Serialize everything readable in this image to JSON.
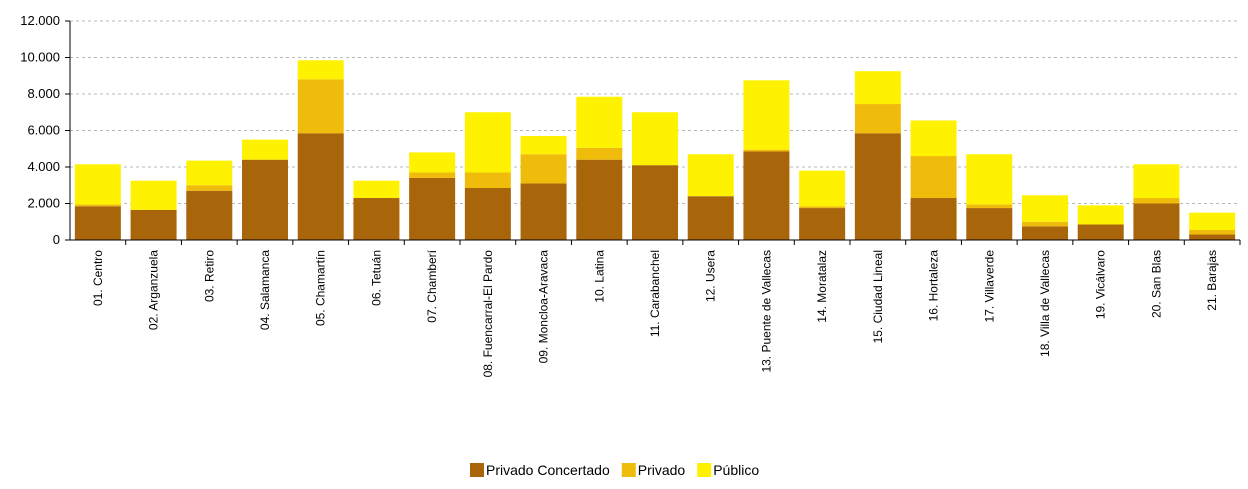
{
  "chart_data": {
    "type": "bar",
    "stacked": true,
    "title": "",
    "xlabel": "",
    "ylabel": "",
    "ylim": [
      0,
      12000
    ],
    "yticks": [
      "0",
      "2.000",
      "4.000",
      "6.000",
      "8.000",
      "10.000",
      "12.000"
    ],
    "ytick_values": [
      0,
      2000,
      4000,
      6000,
      8000,
      10000,
      12000
    ],
    "grid": "horizontal dashed",
    "legend_position": "bottom",
    "categories": [
      "01. Centro",
      "02. Arganzuela",
      "03. Retiro",
      "04. Salamanca",
      "05. Chamartín",
      "06. Tetuán",
      "07. Chamberí",
      "08. Fuencarral-El Pardo",
      "09. Moncloa-Aravaca",
      "10. Latina",
      "11. Carabanchel",
      "12. Usera",
      "13. Puente de Vallecas",
      "14. Moratalaz",
      "15. Ciudad Lineal",
      "16. Hortaleza",
      "17. Villaverde",
      "18. Villa de Vallecas",
      "19. Vicálvaro",
      "20. San Blas",
      "21. Barajas"
    ],
    "series": [
      {
        "name": "Privado Concertado",
        "color": "#A8650A",
        "values": [
          1850,
          1650,
          2700,
          4400,
          5850,
          2300,
          3400,
          2850,
          3100,
          4400,
          4100,
          2400,
          4850,
          1750,
          5850,
          2300,
          1750,
          750,
          850,
          2000,
          300
        ]
      },
      {
        "name": "Privado",
        "color": "#F0BC0C",
        "values": [
          100,
          0,
          300,
          0,
          2950,
          0,
          300,
          850,
          1600,
          650,
          0,
          0,
          100,
          100,
          1600,
          2300,
          200,
          250,
          0,
          300,
          250
        ]
      },
      {
        "name": "Público",
        "color": "#FFF200",
        "values": [
          2200,
          1600,
          1350,
          1100,
          1050,
          950,
          1100,
          3300,
          1000,
          2800,
          2900,
          2300,
          3800,
          1950,
          1800,
          1950,
          2750,
          1450,
          1050,
          1850,
          950
        ]
      }
    ]
  }
}
